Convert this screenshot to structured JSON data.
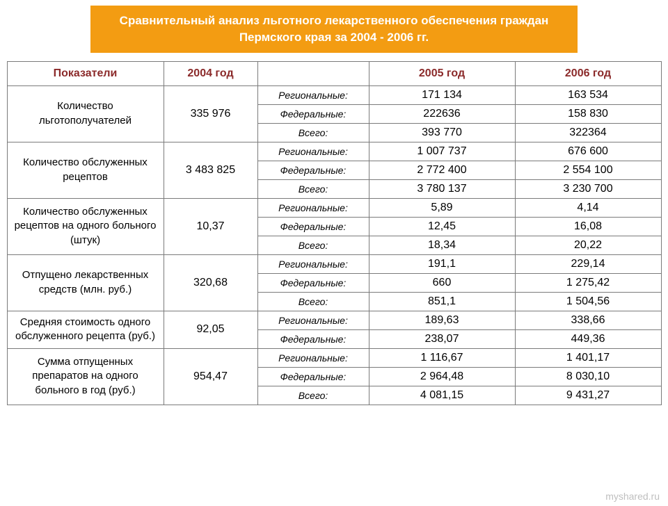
{
  "title": "Сравнительный анализ льготного лекарственного обеспечения граждан Пермского края за 2004 - 2006 гг.",
  "colors": {
    "banner_bg": "#f39c12",
    "banner_text": "#ffffff",
    "header_text": "#8b2a2a",
    "border": "#7a7a7a",
    "watermark": "#bfbfbf"
  },
  "headers": {
    "indicator": "Показатели",
    "y2004": "2004 год",
    "subcat": "",
    "y2005": "2005 год",
    "y2006": "2006 год"
  },
  "subcat_labels": {
    "regional": "Региональные:",
    "federal": "Федеральные:",
    "total": "Всего:"
  },
  "sections": [
    {
      "name": "Количество льготополучателей",
      "y2004": "335 976",
      "rows": [
        {
          "cat": "regional",
          "y2005": "171 134",
          "y2006": "163 534"
        },
        {
          "cat": "federal",
          "y2005": "222636",
          "y2006": "158 830"
        },
        {
          "cat": "total",
          "y2005": "393 770",
          "y2006": "322364"
        }
      ]
    },
    {
      "name": "Количество обслуженных рецептов",
      "y2004": "3 483 825",
      "rows": [
        {
          "cat": "regional",
          "y2005": "1 007 737",
          "y2006": "676 600"
        },
        {
          "cat": "federal",
          "y2005": "2 772 400",
          "y2006": "2 554 100"
        },
        {
          "cat": "total",
          "y2005": "3 780 137",
          "y2006": "3 230 700"
        }
      ]
    },
    {
      "name": "Количество обслуженных рецептов на одного больного (штук)",
      "y2004": "10,37",
      "rows": [
        {
          "cat": "regional",
          "y2005": "5,89",
          "y2006": "4,14"
        },
        {
          "cat": "federal",
          "y2005": "12,45",
          "y2006": "16,08"
        },
        {
          "cat": "total",
          "y2005": "18,34",
          "y2006": "20,22"
        }
      ]
    },
    {
      "name": "Отпущено лекарственных средств (млн. руб.)",
      "y2004": "320,68",
      "rows": [
        {
          "cat": "regional",
          "y2005": "191,1",
          "y2006": "229,14"
        },
        {
          "cat": "federal",
          "y2005": "660",
          "y2006": "1 275,42"
        },
        {
          "cat": "total",
          "y2005": "851,1",
          "y2006": "1 504,56"
        }
      ]
    },
    {
      "name": "Средняя стоимость одного обслуженного рецепта (руб.)",
      "y2004": "92,05",
      "rows": [
        {
          "cat": "regional",
          "y2005": "189,63",
          "y2006": "338,66"
        },
        {
          "cat": "federal",
          "y2005": "238,07",
          "y2006": "449,36"
        }
      ]
    },
    {
      "name": "Сумма отпущенных препаратов на одного больного в год (руб.)",
      "y2004": "954,47",
      "rows": [
        {
          "cat": "regional",
          "y2005": "1 116,67",
          "y2006": "1 401,17"
        },
        {
          "cat": "federal",
          "y2005": "2 964,48",
          "y2006": "8 030,10"
        },
        {
          "cat": "total",
          "y2005": "4 081,15",
          "y2006": "9 431,27"
        }
      ]
    }
  ],
  "watermark": "myshared.ru"
}
